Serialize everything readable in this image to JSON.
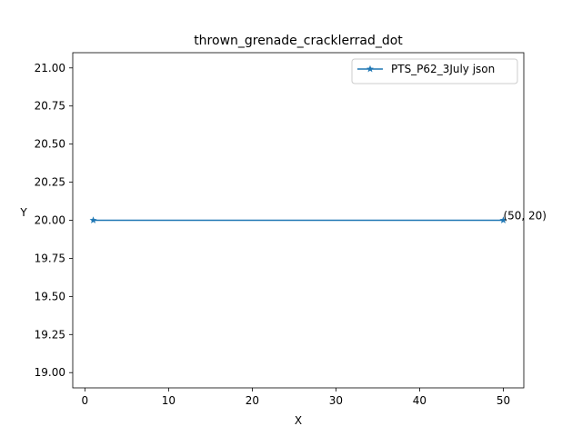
{
  "chart_data": {
    "type": "line",
    "title": "thrown_grenade_cracklerrad_dot",
    "xlabel": "X",
    "ylabel": "Y",
    "xlim": [
      -1.45,
      52.45
    ],
    "ylim": [
      18.9,
      21.1
    ],
    "xticks": [
      "0",
      "10",
      "20",
      "30",
      "40",
      "50"
    ],
    "yticks": [
      "19.00",
      "19.25",
      "19.50",
      "19.75",
      "20.00",
      "20.25",
      "20.50",
      "20.75",
      "21.00"
    ],
    "series": [
      {
        "name": "PTS_P62_3July json",
        "x": [
          1,
          50
        ],
        "y": [
          20,
          20
        ],
        "marker": "star",
        "color": "#1f77b4"
      }
    ],
    "annotations": [
      {
        "text": "(50, 20)",
        "x": 50,
        "y": 20
      }
    ],
    "legend": {
      "position": "top-right"
    },
    "grid": false
  }
}
